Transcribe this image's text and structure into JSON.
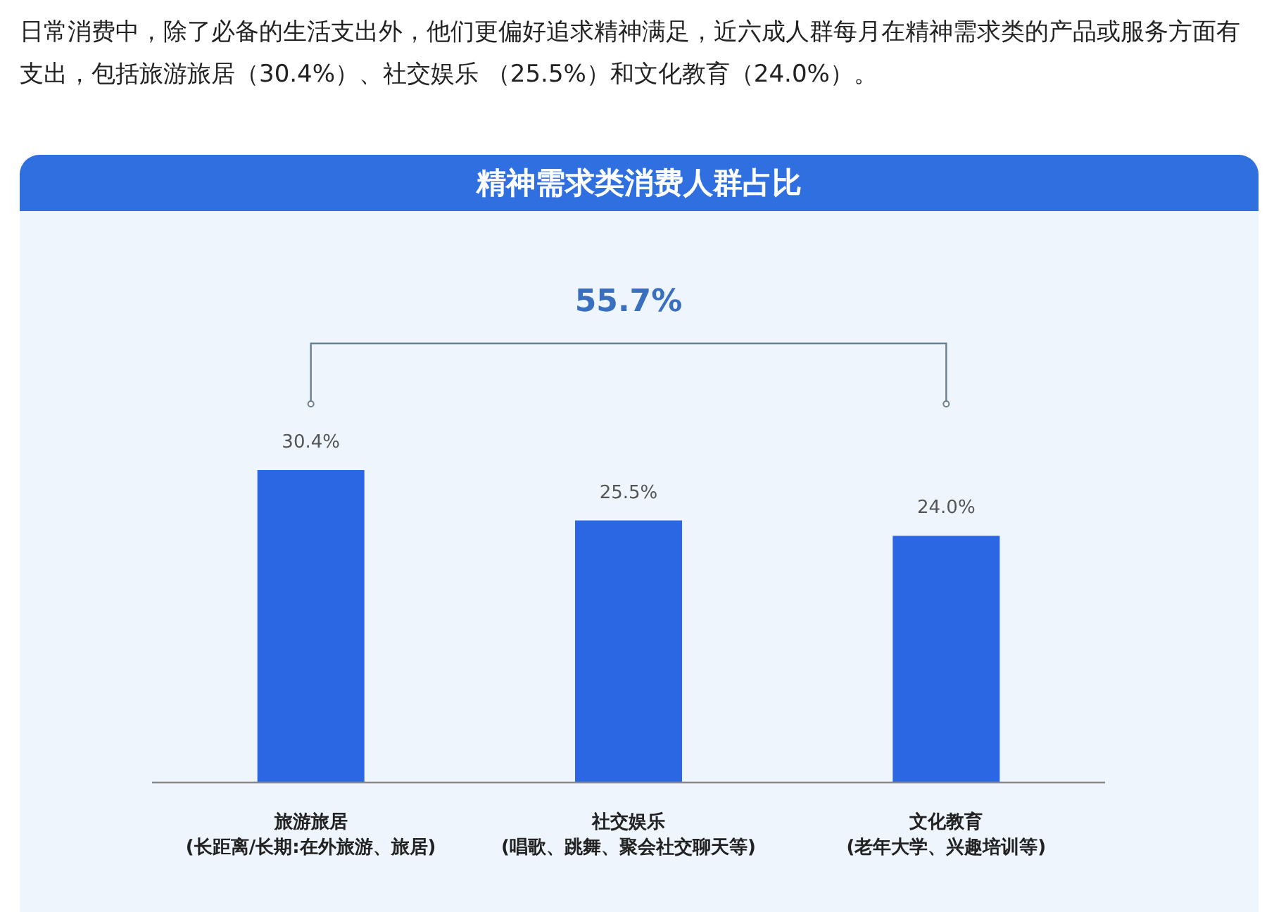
{
  "chart_data": {
    "type": "bar",
    "title": "精神需求类消费人群占比",
    "subtitle": "日常消费中，除了必备的生活支出外，他们更偏好追求精神满足，近六成人群每月在精神需求类的产品或服务方面有支出，包括旅游旅居（30.4%）、社交娱乐 （25.5%）和文化教育（24.0%）。",
    "categories": [
      "旅游旅居\n(长距离/长期:在外旅游、旅居)",
      "社交娱乐\n(唱歌、跳舞、聚会社交聊天等)",
      "文化教育\n(老年大学、兴趣培训等)"
    ],
    "values": [
      30.4,
      25.5,
      24.0
    ],
    "value_labels": [
      "30.4%",
      "25.5%",
      "24.0%"
    ],
    "color": "#2b66e3",
    "annotations": [
      "55.7%"
    ]
  }
}
